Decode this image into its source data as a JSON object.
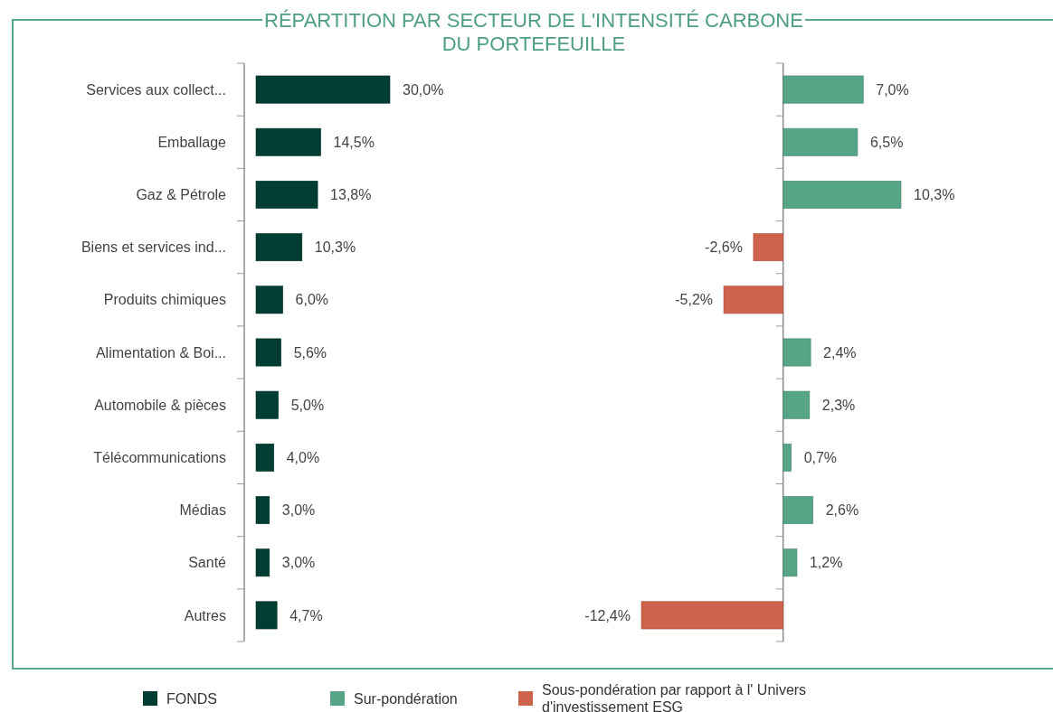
{
  "chart_data": [
    {
      "type": "bar",
      "orientation": "horizontal",
      "title": "RÉPARTITION PAR SECTEUR DE L'INTENSITÉ CARBONE DU PORTEFEUILLE",
      "categories": [
        "Services aux collect...",
        "Emballage",
        "Gaz & Pétrole",
        "Biens et services ind...",
        "Produits chimiques",
        "Alimentation & Boi...",
        "Automobile & pièces",
        "Télécommunications",
        "Médias",
        "Santé",
        "Autres"
      ],
      "legend": "bottom",
      "series": [
        {
          "name": "FONDS",
          "color": "#003d32",
          "values": [
            30.0,
            14.5,
            13.8,
            10.3,
            6.0,
            5.6,
            5.0,
            4.0,
            3.0,
            3.0,
            4.7
          ],
          "value_labels": [
            "30,0%",
            "14,5%",
            "13,8%",
            "10,3%",
            "6,0%",
            "5,6%",
            "5,0%",
            "4,0%",
            "3,0%",
            "3,0%",
            "4,7%"
          ]
        }
      ]
    },
    {
      "type": "bar",
      "orientation": "horizontal",
      "categories": [
        null,
        null,
        null,
        null,
        null,
        null,
        null,
        null,
        null,
        null,
        null
      ],
      "legend": "bottom",
      "series": [
        {
          "name": "Sur-pondération",
          "color": "#57a587",
          "values": [
            7.0,
            6.5,
            10.3,
            null,
            null,
            2.4,
            2.3,
            0.7,
            2.6,
            1.2,
            null
          ],
          "value_labels": [
            "7,0%",
            "6,5%",
            "10,3%",
            null,
            null,
            "2,4%",
            "2,3%",
            "0,7%",
            "2,6%",
            "1,2%",
            null
          ]
        },
        {
          "name": "Sous-pondération par rapport à l' Univers d'investissement ESG",
          "color": "#cf624a",
          "values": [
            null,
            null,
            null,
            -2.6,
            -5.2,
            null,
            null,
            null,
            null,
            null,
            -12.4
          ],
          "value_labels": [
            null,
            null,
            null,
            "-2,6%",
            "-5,2%",
            null,
            null,
            null,
            null,
            null,
            "-12,4%"
          ]
        }
      ]
    }
  ]
}
